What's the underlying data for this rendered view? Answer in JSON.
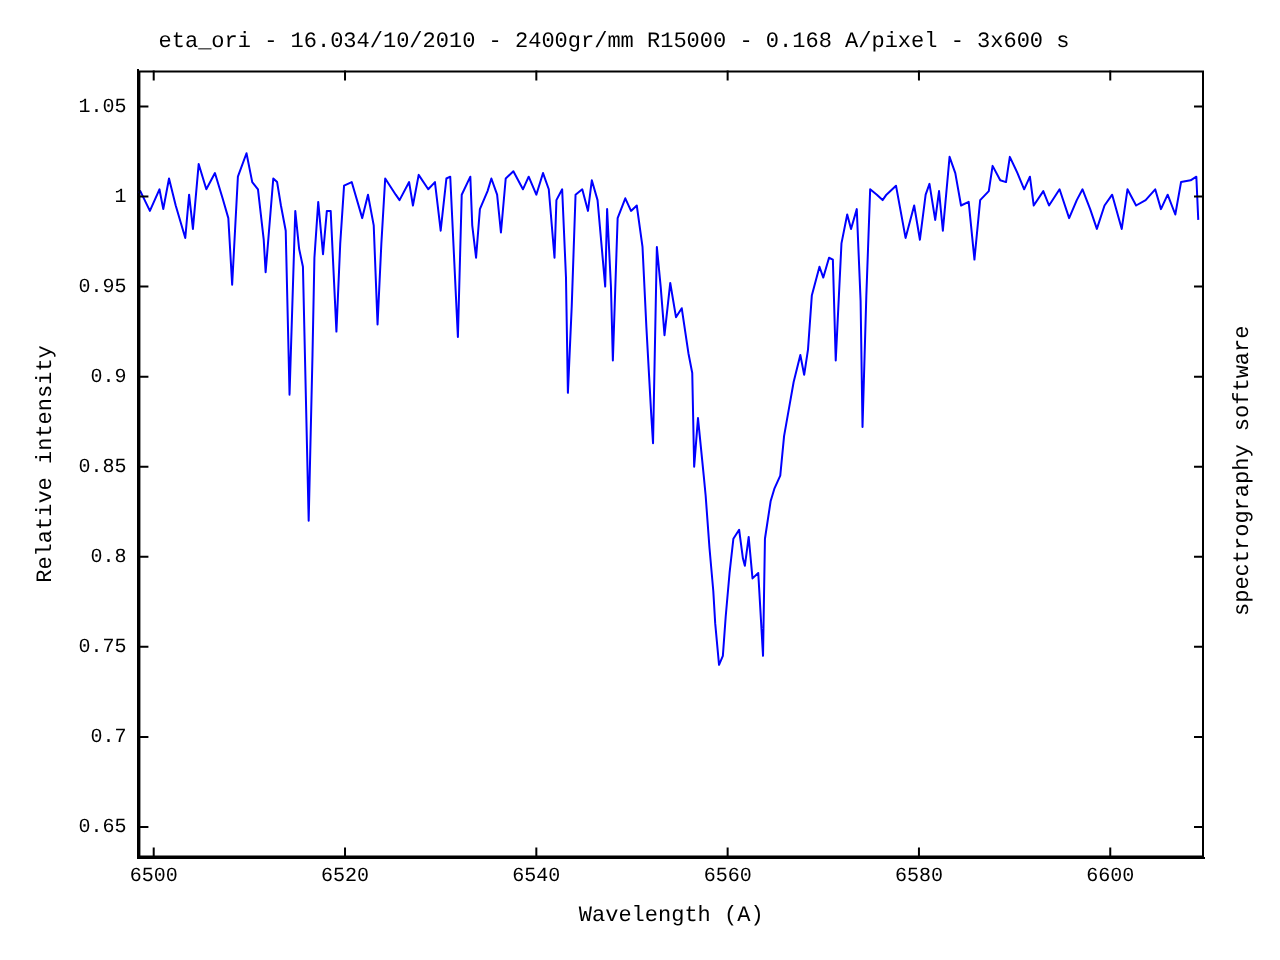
{
  "chart_data": {
    "type": "line",
    "title": "eta_ori - 16.034/10/2010 - 2400gr/mm R15000 - 0.168 A/pixel - 3x600 s",
    "xlabel": "Wavelength (A)",
    "ylabel": "Relative intensity",
    "annotations": [
      "spectrography software"
    ],
    "xlim": [
      6498.4,
      6609.8
    ],
    "xticks": [
      6500,
      6520,
      6540,
      6560,
      6580,
      6600
    ],
    "ylim": [
      0.633,
      1.07
    ],
    "yticks": [
      0.65,
      0.7,
      0.75,
      0.8,
      0.85,
      0.9,
      0.95,
      1,
      1.05
    ],
    "grid": false,
    "legend": false,
    "marker": "none",
    "line_style": "solid",
    "series": [
      {
        "color": "#0000ff",
        "x": [
          6498.4,
          6498.6,
          6499.6,
          6500.6,
          6501.0,
          6501.6,
          6502.3,
          6503.3,
          6503.7,
          6504.1,
          6504.7,
          6505.5,
          6506.4,
          6507.2,
          6507.8,
          6508.2,
          6508.8,
          6509.7,
          6510.3,
          6510.9,
          6511.5,
          6511.7,
          6512.5,
          6512.9,
          6513.3,
          6513.8,
          6514.2,
          6514.8,
          6515.2,
          6515.6,
          6516.2,
          6516.6,
          6516.8,
          6517.2,
          6517.7,
          6518.1,
          6518.5,
          6519.1,
          6519.5,
          6519.9,
          6520.7,
          6521.8,
          6522.4,
          6523.0,
          6523.4,
          6523.8,
          6524.2,
          6525.3,
          6525.7,
          6526.7,
          6527.1,
          6527.7,
          6528.7,
          6529.4,
          6530.0,
          6530.6,
          6531.0,
          6531.6,
          6531.8,
          6532.2,
          6533.1,
          6533.3,
          6533.7,
          6534.1,
          6534.9,
          6535.3,
          6535.9,
          6536.3,
          6536.8,
          6537.6,
          6538.6,
          6539.2,
          6540.0,
          6540.7,
          6541.3,
          6541.9,
          6542.1,
          6542.7,
          6543.1,
          6543.3,
          6543.7,
          6544.1,
          6544.8,
          6545.4,
          6545.8,
          6546.4,
          6547.2,
          6547.4,
          6547.8,
          6548.0,
          6548.5,
          6549.3,
          6549.9,
          6550.5,
          6551.1,
          6551.5,
          6552.0,
          6552.2,
          6552.6,
          6553.0,
          6553.4,
          6554.0,
          6554.6,
          6555.2,
          6555.9,
          6556.3,
          6556.5,
          6556.9,
          6557.5,
          6557.7,
          6558.1,
          6558.5,
          6558.7,
          6559.1,
          6559.5,
          6559.8,
          6560.2,
          6560.6,
          6561.2,
          6561.6,
          6561.8,
          6562.2,
          6562.6,
          6563.2,
          6563.7,
          6563.9,
          6564.5,
          6564.9,
          6565.5,
          6565.9,
          6566.5,
          6566.9,
          6567.6,
          6568.0,
          6568.4,
          6568.8,
          6569.6,
          6570.0,
          6570.6,
          6571.0,
          6571.3,
          6571.9,
          6572.5,
          6572.9,
          6573.5,
          6573.9,
          6574.1,
          6574.5,
          6574.9,
          6575.6,
          6576.2,
          6576.6,
          6577.6,
          6578.6,
          6579.5,
          6580.1,
          6580.7,
          6581.1,
          6581.7,
          6582.1,
          6582.5,
          6583.2,
          6583.8,
          6584.4,
          6585.2,
          6585.8,
          6586.4,
          6587.3,
          6587.7,
          6588.5,
          6589.1,
          6589.5,
          6590.3,
          6591.0,
          6591.6,
          6592.0,
          6593.0,
          6593.6,
          6594.7,
          6595.7,
          6596.5,
          6597.1,
          6597.9,
          6598.6,
          6599.4,
          6600.2,
          6601.2,
          6601.8,
          6602.7,
          6603.7,
          6604.7,
          6605.3,
          6606.0,
          6606.8,
          6607.4,
          6608.4,
          6609.0,
          6609.2
        ],
        "values": [
          1.002,
          1.003,
          0.992,
          1.004,
          0.993,
          1.01,
          0.995,
          0.977,
          1.001,
          0.982,
          1.018,
          1.004,
          1.013,
          0.999,
          0.988,
          0.951,
          1.011,
          1.024,
          1.008,
          1.004,
          0.976,
          0.958,
          1.01,
          1.008,
          0.995,
          0.981,
          0.89,
          0.992,
          0.971,
          0.961,
          0.82,
          0.912,
          0.966,
          0.997,
          0.968,
          0.992,
          0.992,
          0.925,
          0.974,
          1.006,
          1.008,
          0.988,
          1.001,
          0.984,
          0.929,
          0.974,
          1.01,
          1.001,
          0.998,
          1.008,
          0.995,
          1.012,
          1.004,
          1.008,
          0.981,
          1.01,
          1.011,
          0.944,
          0.922,
          1.001,
          1.011,
          0.984,
          0.966,
          0.993,
          1.003,
          1.01,
          1.001,
          0.98,
          1.01,
          1.014,
          1.004,
          1.011,
          1.001,
          1.013,
          1.004,
          0.966,
          0.998,
          1.004,
          0.955,
          0.891,
          0.939,
          1.001,
          1.004,
          0.992,
          1.009,
          0.998,
          0.95,
          0.993,
          0.95,
          0.909,
          0.988,
          0.999,
          0.992,
          0.995,
          0.972,
          0.928,
          0.88,
          0.863,
          0.972,
          0.95,
          0.923,
          0.952,
          0.933,
          0.938,
          0.913,
          0.902,
          0.85,
          0.877,
          0.845,
          0.834,
          0.805,
          0.781,
          0.763,
          0.74,
          0.745,
          0.767,
          0.791,
          0.81,
          0.815,
          0.799,
          0.795,
          0.811,
          0.788,
          0.791,
          0.745,
          0.81,
          0.831,
          0.838,
          0.845,
          0.867,
          0.885,
          0.897,
          0.912,
          0.901,
          0.915,
          0.945,
          0.961,
          0.955,
          0.966,
          0.965,
          0.909,
          0.974,
          0.99,
          0.982,
          0.993,
          0.942,
          0.872,
          0.945,
          1.004,
          1.001,
          0.998,
          1.001,
          1.006,
          0.977,
          0.995,
          0.976,
          1.001,
          1.007,
          0.987,
          1.003,
          0.981,
          1.022,
          1.013,
          0.995,
          0.997,
          0.965,
          0.998,
          1.003,
          1.017,
          1.009,
          1.008,
          1.022,
          1.013,
          1.004,
          1.011,
          0.995,
          1.003,
          0.995,
          1.004,
          0.988,
          0.998,
          1.004,
          0.993,
          0.982,
          0.995,
          1.001,
          0.982,
          1.004,
          0.995,
          0.998,
          1.004,
          0.993,
          1.001,
          0.99,
          1.008,
          1.009,
          1.011,
          0.987
        ]
      }
    ]
  }
}
